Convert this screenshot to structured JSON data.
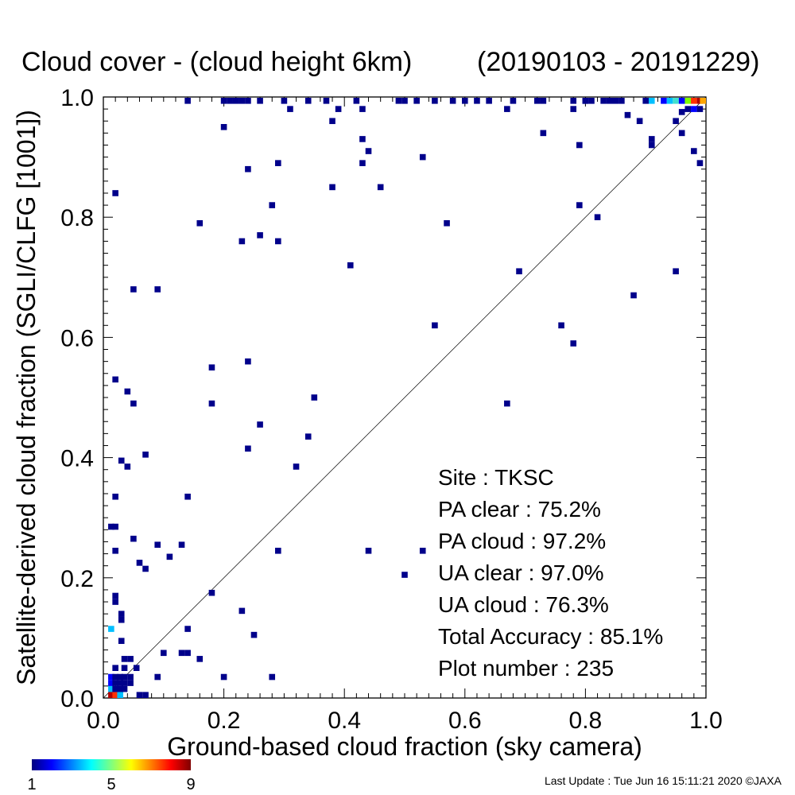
{
  "chart_data": {
    "type": "heatmap",
    "title": "Cloud cover - (cloud height 6km)",
    "date_range": "(20190103 - 20191229)",
    "xlabel": "Ground-based cloud fraction (sky camera)",
    "ylabel": "Satellite-derived cloud fraction (SGLI/CLFG [1001])",
    "xlim": [
      0,
      1
    ],
    "ylim": [
      0,
      1
    ],
    "x_ticks": [
      "0.0",
      "0.2",
      "0.4",
      "0.6",
      "0.8",
      "1.0"
    ],
    "y_ticks": [
      "0.0",
      "0.2",
      "0.4",
      "0.6",
      "0.8",
      "1.0"
    ],
    "reference_line": "y = x",
    "grid": false,
    "stats": [
      {
        "label": "Site : TKSC"
      },
      {
        "label": "PA clear :  75.2%"
      },
      {
        "label": "PA cloud :  97.2%"
      },
      {
        "label": "UA clear :  97.0%"
      },
      {
        "label": "UA cloud :  76.3%"
      },
      {
        "label": "Total Accuracy :  85.1%"
      },
      {
        "label": "Plot number :       235"
      }
    ],
    "colorbar": {
      "min": 1,
      "max": 9,
      "tick_labels": [
        "1",
        "5",
        "9"
      ],
      "colors": [
        "#00008b",
        "#0000ff",
        "#00bfff",
        "#40e0d0",
        "#7fff00",
        "#ffff00",
        "#ffa500",
        "#ff3000",
        "#b00000"
      ]
    },
    "points": [
      [
        0.013,
        0.0,
        9
      ],
      [
        0.02,
        0.0,
        8
      ],
      [
        0.028,
        0.0,
        3
      ],
      [
        0.06,
        0.0,
        1
      ],
      [
        0.07,
        0.0,
        1
      ],
      [
        0.013,
        0.015,
        3
      ],
      [
        0.02,
        0.015,
        1
      ],
      [
        0.028,
        0.015,
        1
      ],
      [
        0.035,
        0.015,
        1
      ],
      [
        0.013,
        0.025,
        2
      ],
      [
        0.02,
        0.025,
        1
      ],
      [
        0.028,
        0.025,
        1
      ],
      [
        0.035,
        0.025,
        1
      ],
      [
        0.045,
        0.025,
        1
      ],
      [
        0.013,
        0.035,
        2
      ],
      [
        0.02,
        0.035,
        1
      ],
      [
        0.028,
        0.035,
        1
      ],
      [
        0.035,
        0.035,
        1
      ],
      [
        0.045,
        0.035,
        1
      ],
      [
        0.09,
        0.035,
        1
      ],
      [
        0.2,
        0.035,
        1
      ],
      [
        0.28,
        0.035,
        1
      ],
      [
        0.02,
        0.05,
        1
      ],
      [
        0.035,
        0.05,
        1
      ],
      [
        0.055,
        0.05,
        1
      ],
      [
        0.035,
        0.065,
        1
      ],
      [
        0.045,
        0.065,
        1
      ],
      [
        0.16,
        0.065,
        1
      ],
      [
        0.13,
        0.075,
        1
      ],
      [
        0.1,
        0.075,
        1
      ],
      [
        0.14,
        0.075,
        1
      ],
      [
        0.03,
        0.095,
        1
      ],
      [
        0.25,
        0.105,
        1
      ],
      [
        0.013,
        0.115,
        3
      ],
      [
        0.14,
        0.115,
        1
      ],
      [
        0.03,
        0.13,
        1
      ],
      [
        0.03,
        0.14,
        1
      ],
      [
        0.23,
        0.145,
        1
      ],
      [
        0.02,
        0.16,
        1
      ],
      [
        0.02,
        0.17,
        1
      ],
      [
        0.18,
        0.175,
        1
      ],
      [
        0.07,
        0.215,
        1
      ],
      [
        0.06,
        0.225,
        1
      ],
      [
        0.11,
        0.235,
        1
      ],
      [
        0.02,
        0.245,
        1
      ],
      [
        0.09,
        0.255,
        1
      ],
      [
        0.13,
        0.255,
        1
      ],
      [
        0.29,
        0.245,
        1
      ],
      [
        0.44,
        0.245,
        1
      ],
      [
        0.53,
        0.245,
        1
      ],
      [
        0.5,
        0.205,
        1
      ],
      [
        0.05,
        0.265,
        1
      ],
      [
        0.013,
        0.285,
        1
      ],
      [
        0.02,
        0.285,
        1
      ],
      [
        0.02,
        0.335,
        1
      ],
      [
        0.14,
        0.335,
        1
      ],
      [
        0.04,
        0.385,
        1
      ],
      [
        0.03,
        0.395,
        1
      ],
      [
        0.07,
        0.405,
        1
      ],
      [
        0.32,
        0.385,
        1
      ],
      [
        0.24,
        0.415,
        1
      ],
      [
        0.34,
        0.435,
        1
      ],
      [
        0.26,
        0.455,
        1
      ],
      [
        0.05,
        0.49,
        1
      ],
      [
        0.18,
        0.49,
        1
      ],
      [
        0.35,
        0.5,
        1
      ],
      [
        0.04,
        0.51,
        1
      ],
      [
        0.67,
        0.49,
        1
      ],
      [
        0.02,
        0.53,
        1
      ],
      [
        0.18,
        0.55,
        1
      ],
      [
        0.24,
        0.56,
        1
      ],
      [
        0.78,
        0.59,
        1
      ],
      [
        0.55,
        0.62,
        1
      ],
      [
        0.76,
        0.62,
        1
      ],
      [
        0.88,
        0.67,
        1
      ],
      [
        0.05,
        0.68,
        1
      ],
      [
        0.09,
        0.68,
        1
      ],
      [
        0.69,
        0.71,
        1
      ],
      [
        0.95,
        0.71,
        1
      ],
      [
        0.41,
        0.72,
        1
      ],
      [
        0.23,
        0.76,
        1
      ],
      [
        0.29,
        0.76,
        1
      ],
      [
        0.26,
        0.77,
        1
      ],
      [
        0.16,
        0.79,
        1
      ],
      [
        0.57,
        0.79,
        1
      ],
      [
        0.82,
        0.8,
        1
      ],
      [
        0.28,
        0.82,
        1
      ],
      [
        0.79,
        0.82,
        1
      ],
      [
        0.02,
        0.84,
        1
      ],
      [
        0.38,
        0.85,
        1
      ],
      [
        0.46,
        0.85,
        1
      ],
      [
        0.24,
        0.88,
        1
      ],
      [
        0.29,
        0.89,
        1
      ],
      [
        0.43,
        0.89,
        1
      ],
      [
        0.53,
        0.9,
        1
      ],
      [
        0.99,
        0.89,
        1
      ],
      [
        0.44,
        0.91,
        1
      ],
      [
        0.98,
        0.91,
        1
      ],
      [
        0.43,
        0.93,
        1
      ],
      [
        0.79,
        0.92,
        1
      ],
      [
        0.91,
        0.93,
        1
      ],
      [
        0.91,
        0.92,
        1
      ],
      [
        0.73,
        0.94,
        1
      ],
      [
        0.96,
        0.94,
        1
      ],
      [
        0.2,
        0.95,
        1
      ],
      [
        0.38,
        0.96,
        1
      ],
      [
        0.89,
        0.96,
        1
      ],
      [
        0.87,
        0.97,
        1
      ],
      [
        0.95,
        0.96,
        1
      ],
      [
        0.31,
        0.98,
        1
      ],
      [
        0.39,
        0.98,
        1
      ],
      [
        0.43,
        0.98,
        1
      ],
      [
        0.67,
        0.98,
        1
      ],
      [
        0.78,
        0.98,
        1
      ],
      [
        0.97,
        0.98,
        1
      ],
      [
        0.98,
        0.98,
        2
      ],
      [
        0.99,
        0.98,
        1
      ],
      [
        0.96,
        0.975,
        1
      ],
      [
        0.14,
        1.0,
        1
      ],
      [
        0.2,
        1.0,
        1
      ],
      [
        0.21,
        1.0,
        1
      ],
      [
        0.22,
        1.0,
        1
      ],
      [
        0.23,
        1.0,
        1
      ],
      [
        0.24,
        1.0,
        1
      ],
      [
        0.26,
        1.0,
        1
      ],
      [
        0.3,
        1.0,
        1
      ],
      [
        0.34,
        1.0,
        1
      ],
      [
        0.37,
        1.0,
        1
      ],
      [
        0.42,
        1.0,
        1
      ],
      [
        0.49,
        1.0,
        1
      ],
      [
        0.5,
        1.0,
        1
      ],
      [
        0.52,
        1.0,
        1
      ],
      [
        0.55,
        1.0,
        1
      ],
      [
        0.58,
        1.0,
        1
      ],
      [
        0.6,
        1.0,
        1
      ],
      [
        0.62,
        1.0,
        1
      ],
      [
        0.64,
        1.0,
        1
      ],
      [
        0.68,
        1.0,
        1
      ],
      [
        0.72,
        1.0,
        1
      ],
      [
        0.73,
        1.0,
        1
      ],
      [
        0.78,
        1.0,
        1
      ],
      [
        0.8,
        1.0,
        1
      ],
      [
        0.8,
        1.0,
        1
      ],
      [
        0.81,
        1.0,
        1
      ],
      [
        0.83,
        1.0,
        1
      ],
      [
        0.84,
        1.0,
        1
      ],
      [
        0.85,
        1.0,
        1
      ],
      [
        0.86,
        1.0,
        1
      ],
      [
        0.9,
        1.0,
        1
      ],
      [
        0.91,
        1.0,
        3
      ],
      [
        0.93,
        1.0,
        2
      ],
      [
        0.94,
        1.0,
        3
      ],
      [
        0.95,
        1.0,
        4
      ],
      [
        0.96,
        1.0,
        2
      ],
      [
        0.97,
        1.0,
        5
      ],
      [
        0.98,
        1.0,
        8
      ],
      [
        0.99,
        1.0,
        9
      ],
      [
        1.0,
        1.0,
        7
      ]
    ]
  },
  "footer": {
    "last_update": "Last Update : Tue Jun 16 15:11:21 2020  ©JAXA"
  }
}
